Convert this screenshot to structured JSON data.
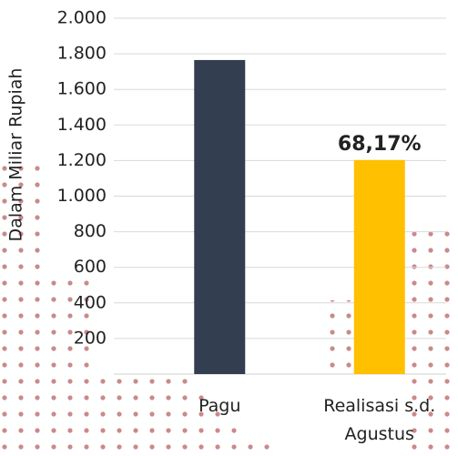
{
  "chart_data": {
    "type": "bar",
    "y_label": "Dalam Miliar Rupiah",
    "categories": [
      "Pagu",
      "Realisasi s.d. Agustus"
    ],
    "values": [
      1765,
      1203
    ],
    "colors": [
      "#333f50",
      "#ffc000"
    ],
    "annotation": "68,17%",
    "ylim": [
      0,
      2000
    ],
    "yticks": [
      200,
      400,
      600,
      800,
      {
        "value": 1000,
        "label": "1.000"
      },
      {
        "value": 1200,
        "label": "1.200"
      },
      {
        "value": 1400,
        "label": "1.400"
      },
      {
        "value": 1600,
        "label": "1.600"
      },
      {
        "value": 1800,
        "label": "1.800"
      },
      {
        "value": 2000,
        "label": "2.000"
      }
    ],
    "grid": true
  }
}
